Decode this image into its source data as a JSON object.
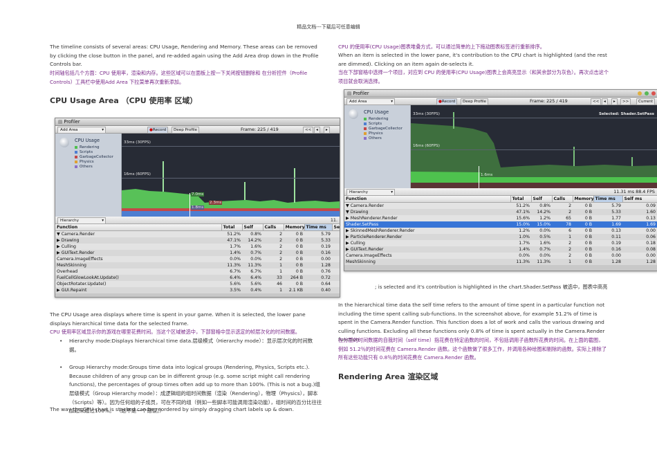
{
  "header": "精品文档---下载后可任意编辑",
  "left": {
    "p1": "The timeline consists of several areas: CPU Usage, Rendering and Memory. These areas can be removed by clicking the close button in the panel, and re-added again using the Add Area drop down in the Profile Controls bar.",
    "p1_cn": "时间轴包括几个方面：CPU 使用率，渲染和内存。这些区域可以在面板上按一下关闭按钮删除和 在分析控件（Profile Controls）工具栏中使用Add Area 下拉菜单再次重新添加。",
    "heading": "CPU Usage Area （CPU 使用率 区域）",
    "p2": "The CPU Usage area displays where time is spent in your game. When it is selected, the lower pane displays hierarchical time data for the selected frame.",
    "p2_cn": "CPU 使用率区域显示你的游戏在哪里花费时间。当这个区域被选中，下部窗格中显示选定的帧层次化的时间数据。",
    "bullet1": "Hierarchy mode:Displays hierarchical time data.层级模式（Hierarchy mode）：显示层次化的时间数据。",
    "bullet2": "Group Hierarchy mode:Groups time data into logical groups (Rendering, Physics, Scripts etc.). Because children of any group can be in different group (e.g. some script might call rendering functions), the percentages of group times often add up to more than 100%. (This is not a bug.)组层级模式（Group Hierarchy mode）：成逻辑组的组时间数据（渲染（Rendering），物理（Physics），脚本（Scripts）等）。因为任何组的子成员，可在不同的组（例如一些脚本可能调用渲染功能），组时间的百分比往往加起来超过100%。 （这不是一个错误。）",
    "p3": "The way the CPU chart is stacked can be reordered by simply dragging chart labels up & down."
  },
  "right": {
    "p1_cn": "CPU 的使用率(CPU Usage)图表堆叠方式，可以通过简单的上下拖动图表标签进行重新排序。",
    "p2": "When an item is selected in the lower pane, it's contribution to the CPU chart is highlighted (and the rest are dimmed). Clicking on an item again de-selects it.",
    "p2_cn": "当在下部窗格中选择一个项目，对应到 CPU 的使用率(CPU Usage)图表上会高亮显示（和其余部分为灰色）。再次点击这个项目就会取消选择。",
    "caption": "; is selected and it's contribution is highlighted in the chart.Shader.SetPass 被选中，图表中高亮",
    "p3": "In the hierarchical time data the self time refers to the amount of time spent in a particular function not including the time spent calling sub-functions. In the screenshot above, for example 51.2% of time is spent in the Camera.Render function. This function does a lot of work and calls the various drawing and culling functions. Excluding all these functions only 0.8% of time is spent actually in the Camera.Render function.",
    "p3_cn": "在分层的时间数据的自我时间（self time）指花费在特定函数的时间，不包括调用子函数所花费的时间。在上面的截图，例如 51.2％的时间花费在 Camera.Render 函数。这个函数做了很多工作，并调用各种绘图和剔除的函数。实际上排除了所有这些功能只有 0.8％的时间花费在 Camera.Render 函数。",
    "heading": "Rendering Area 渲染区域"
  },
  "profiler1": {
    "title": "Profiler",
    "add_area": "Add Area",
    "record": "Record",
    "deep_profile": "Deep Profile",
    "frame": "Frame: 225 / 419",
    "legend_title": "CPU Usage",
    "legend": [
      {
        "label": "Rendering",
        "color": "#4fc04f"
      },
      {
        "label": "Scripts",
        "color": "#4d7ed1"
      },
      {
        "label": "GarbageCollector",
        "color": "#c44848"
      },
      {
        "label": "Physics",
        "color": "#e0a030"
      },
      {
        "label": "Others",
        "color": "#8a6fc8"
      }
    ],
    "fps30": "33ms (30FPS)",
    "fps60": "16ms (60FPS)",
    "m1": "7.0ms",
    "m2": "2.3ms",
    "m3": "1.8ms",
    "hierarchy": "Hierarchy",
    "hier_right": "11.",
    "columns": [
      "Function",
      "Total",
      "Self",
      "Calls",
      "Memory",
      "Time ms",
      "Se"
    ],
    "rows": [
      [
        "▼ Camera.Render",
        "51.2%",
        "0.8%",
        "2",
        "0 B",
        "5.79",
        ""
      ],
      [
        "   ▶ Drawing",
        "47.1%",
        "14.2%",
        "2",
        "0 B",
        "5.33",
        ""
      ],
      [
        "   ▶ Culling",
        "1.7%",
        "1.6%",
        "2",
        "0 B",
        "0.19",
        ""
      ],
      [
        "   ▶ GUIText.Render",
        "1.4%",
        "0.7%",
        "2",
        "0 B",
        "0.16",
        ""
      ],
      [
        "      Camera.ImageEffects",
        "0.0%",
        "0.0%",
        "2",
        "0 B",
        "0.00",
        ""
      ],
      [
        "  MeshSkinning",
        "11.3%",
        "11.3%",
        "1",
        "0 B",
        "1.28",
        ""
      ],
      [
        "  Overhead",
        "6.7%",
        "6.7%",
        "1",
        "0 B",
        "0.76",
        ""
      ],
      [
        "  FuelCellGlowLookAt.Update()",
        "6.4%",
        "6.4%",
        "33",
        "264 B",
        "0.72",
        ""
      ],
      [
        "  ObjectRotater.Update()",
        "5.6%",
        "5.6%",
        "46",
        "0 B",
        "0.64",
        ""
      ],
      [
        "▶ GUI.Repaint",
        "3.5%",
        "0.4%",
        "1",
        "2.1 KB",
        "0.40",
        ""
      ]
    ]
  },
  "profiler2": {
    "title": "Profiler",
    "add_area": "Add Area",
    "record": "Record",
    "deep_profile": "Deep Profile",
    "frame": "Frame: 225 / 419",
    "current": "Current",
    "selected": "Selected: Shader.SetPass",
    "legend_title": "CPU Usage",
    "legend": [
      {
        "label": "Rendering",
        "color": "#4fc04f"
      },
      {
        "label": "Scripts",
        "color": "#4d7ed1"
      },
      {
        "label": "GarbageCollector",
        "color": "#c44848"
      },
      {
        "label": "Physics",
        "color": "#e0a030"
      },
      {
        "label": "Others",
        "color": "#8a6fc8"
      }
    ],
    "fps30": "33ms (30FPS)",
    "fps60": "16ms (60FPS)",
    "m1": "1.6ms",
    "hierarchy": "Hierarchy",
    "hier_right": "11.31 ms  88.4 FPS",
    "columns": [
      "Function",
      "Total",
      "Self",
      "Calls",
      "Memory",
      "Time ms",
      "Self ms"
    ],
    "rows": [
      [
        "▼ Camera.Render",
        "51.2%",
        "0.8%",
        "2",
        "0 B",
        "5.79",
        "0.09"
      ],
      [
        "   ▼ Drawing",
        "47.1%",
        "14.2%",
        "2",
        "0 B",
        "5.33",
        "1.60"
      ],
      [
        "      ▶ MeshRenderer.Render",
        "15.6%",
        "1.2%",
        "65",
        "0 B",
        "1.77",
        "0.13"
      ],
      [
        "         Shader.SetPass",
        "15.0%",
        "15.0%",
        "78",
        "0 B",
        "1.69",
        "1.69"
      ],
      [
        "      ▶ SkinnedMeshRenderer.Render",
        "1.2%",
        "0.0%",
        "6",
        "0 B",
        "0.13",
        "0.00"
      ],
      [
        "      ▶ ParticleRenderer.Render",
        "1.0%",
        "0.5%",
        "1",
        "0 B",
        "0.11",
        "0.06"
      ],
      [
        "   ▶ Culling",
        "1.7%",
        "1.6%",
        "2",
        "0 B",
        "0.19",
        "0.18"
      ],
      [
        "   ▶ GUIText.Render",
        "1.4%",
        "0.7%",
        "2",
        "0 B",
        "0.16",
        "0.08"
      ],
      [
        "      Camera.ImageEffects",
        "0.0%",
        "0.0%",
        "2",
        "0 B",
        "0.00",
        "0.00"
      ],
      [
        "  MeshSkinning",
        "11.3%",
        "11.3%",
        "1",
        "0 B",
        "1.28",
        "1.28"
      ]
    ]
  }
}
